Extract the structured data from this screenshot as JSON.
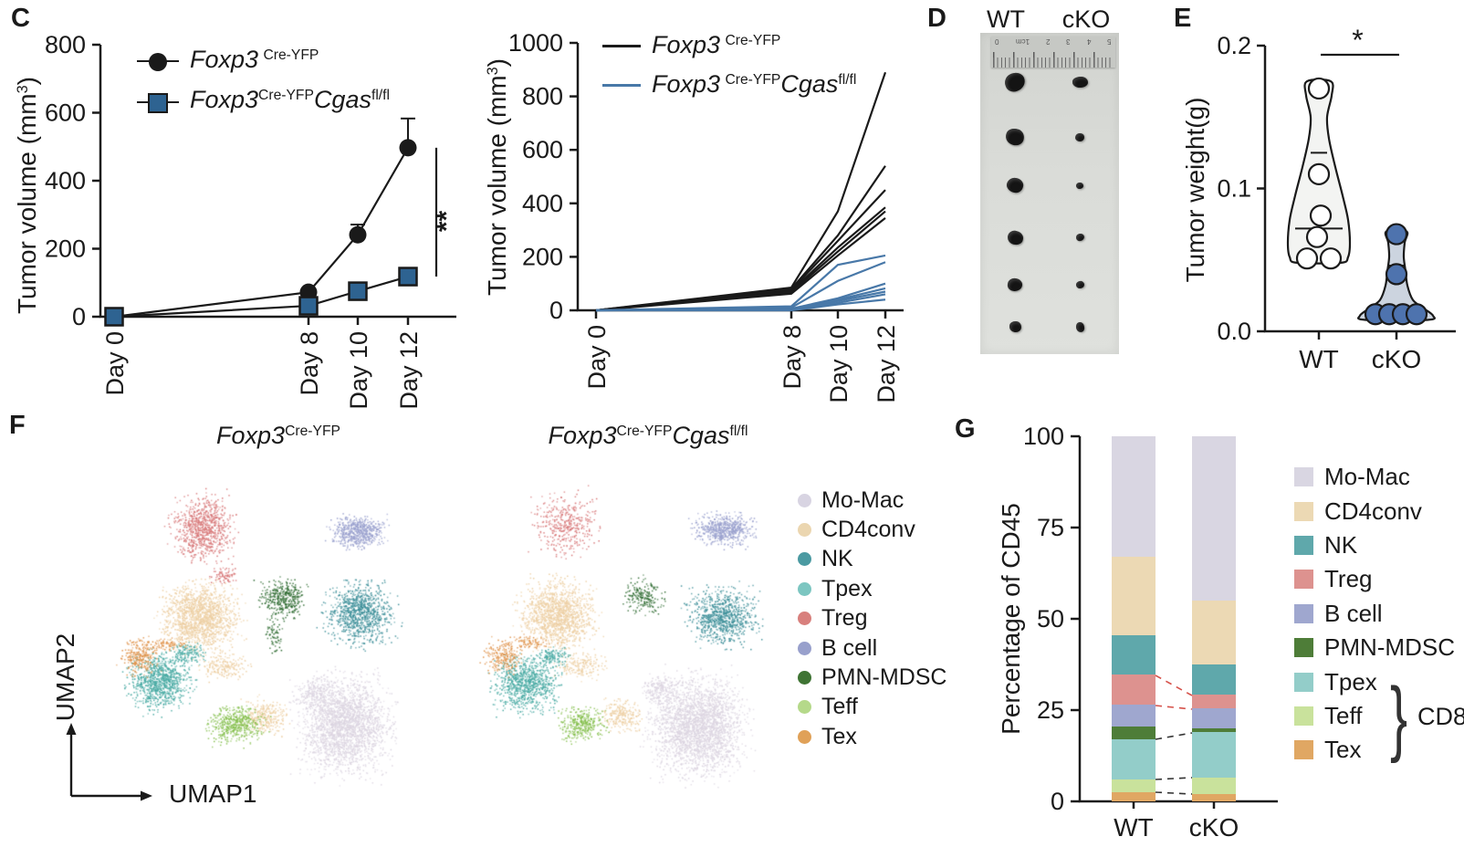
{
  "panels": {
    "c": {
      "label": "C"
    },
    "d": {
      "label": "D",
      "columns": [
        "WT",
        "cKO"
      ],
      "ruler_labels": [
        "0",
        "1cm",
        "2",
        "3",
        "4",
        "5"
      ],
      "tumors": {
        "wt": [
          [
            22,
            20
          ],
          [
            20,
            18
          ],
          [
            18,
            16
          ],
          [
            17,
            15
          ],
          [
            16,
            14
          ],
          [
            13,
            12
          ]
        ],
        "cko": [
          [
            17,
            12
          ],
          [
            10,
            9
          ],
          [
            8,
            7
          ],
          [
            9,
            8
          ],
          [
            9,
            8
          ],
          [
            9,
            11
          ]
        ]
      }
    },
    "e": {
      "label": "E"
    },
    "f": {
      "label": "F"
    },
    "g": {
      "label": "G"
    }
  },
  "chart_data": [
    {
      "id": "tumor-volume-mean",
      "type": "line",
      "ylabel": {
        "pre": "Tumor volume (mm",
        "sup": "3",
        "post": ")"
      },
      "ylim": [
        0,
        800
      ],
      "yticks": [
        0,
        200,
        400,
        600,
        800
      ],
      "categories": [
        "Day 0",
        "Day 8",
        "Day 10",
        "Day 12"
      ],
      "significance": "**",
      "series": [
        {
          "name": {
            "base1": "Foxp3",
            "sup1": "Cre-YFP"
          },
          "marker": "circle",
          "color": "#1a1a1a",
          "values": [
            0,
            72,
            241,
            497
          ],
          "err_up": [
            0,
            10,
            30,
            86
          ]
        },
        {
          "name": {
            "base1": "Foxp3",
            "sup1": "Cre-YFP",
            "base2": "Cgas",
            "sup2": "fl/fl"
          },
          "marker": "square",
          "color": "#2e6391",
          "values": [
            0,
            32,
            75,
            118
          ],
          "err_up": [
            0,
            6,
            10,
            18
          ]
        }
      ]
    },
    {
      "id": "tumor-volume-individual",
      "type": "line",
      "ylabel": {
        "pre": "Tumor volume (mm",
        "sup": "3",
        "post": ")"
      },
      "ylim": [
        0,
        1000
      ],
      "yticks": [
        0,
        200,
        400,
        600,
        800,
        1000
      ],
      "categories": [
        "Day 0",
        "Day 8",
        "Day 10",
        "Day 12"
      ],
      "groups": [
        {
          "name": {
            "base1": "Foxp3",
            "sup1": "Cre-YFP"
          },
          "color": "#1a1a1a",
          "lines": [
            [
              0,
              85,
              370,
              890
            ],
            [
              0,
              80,
              280,
              540
            ],
            [
              0,
              76,
              260,
              450
            ],
            [
              0,
              72,
              235,
              385
            ],
            [
              0,
              68,
              220,
              370
            ],
            [
              0,
              62,
              205,
              345
            ]
          ]
        },
        {
          "name": {
            "base1": "Foxp3",
            "sup1": "Cre-YFP",
            "base2": "Cgas",
            "sup2": "fl/fl"
          },
          "color": "#4878a8",
          "lines": [
            [
              0,
              15,
              170,
              205
            ],
            [
              0,
              10,
              110,
              180
            ],
            [
              0,
              6,
              45,
              100
            ],
            [
              0,
              5,
              40,
              82
            ],
            [
              0,
              3,
              35,
              70
            ],
            [
              0,
              2,
              28,
              60
            ],
            [
              0,
              0,
              22,
              40
            ]
          ]
        }
      ]
    },
    {
      "id": "tumor-weight",
      "type": "violin",
      "ylabel": "Tumor weight(g)",
      "ylim": [
        0,
        0.2
      ],
      "yticks": [
        "0.0",
        "0.1",
        "0.2"
      ],
      "categories": [
        "WT",
        "cKO"
      ],
      "significance": "*",
      "groups": [
        {
          "name": "WT",
          "fill": "#f3f4f2",
          "stroke": "#1a1a1a",
          "dot_fill": "#ffffff",
          "profile": [
            [
              0.175,
              13
            ],
            [
              0.165,
              14
            ],
            [
              0.15,
              9
            ],
            [
              0.135,
              11
            ],
            [
              0.115,
              18
            ],
            [
              0.095,
              26
            ],
            [
              0.078,
              32
            ],
            [
              0.062,
              34
            ],
            [
              0.052,
              32
            ],
            [
              0.048,
              24
            ]
          ],
          "points": [
            [
              0,
              0.17
            ],
            [
              0,
              0.11
            ],
            [
              2,
              0.081
            ],
            [
              -2,
              0.066
            ],
            [
              -13,
              0.051
            ],
            [
              13,
              0.051
            ]
          ],
          "median": {
            "v": 0.072,
            "hw": 26
          },
          "quartile": {
            "v": 0.125,
            "hw": 9
          }
        },
        {
          "name": "cKO",
          "fill": "#ccd4df",
          "stroke": "#1a1a1a",
          "dot_fill": "#4e73ae",
          "profile": [
            [
              0.07,
              11
            ],
            [
              0.062,
              9
            ],
            [
              0.052,
              8
            ],
            [
              0.042,
              10
            ],
            [
              0.032,
              12
            ],
            [
              0.022,
              18
            ],
            [
              0.016,
              30
            ],
            [
              0.011,
              40
            ],
            [
              0.008,
              34
            ]
          ],
          "points": [
            [
              0,
              0.068
            ],
            [
              0,
              0.04
            ],
            [
              -23,
              0.012
            ],
            [
              -8,
              0.012
            ],
            [
              7,
              0.012
            ],
            [
              22,
              0.012
            ]
          ],
          "median": {
            "v": 0.0125,
            "hw": 26
          },
          "quartile": {
            "v": 0.046,
            "hw": 9
          }
        }
      ]
    },
    {
      "id": "umap",
      "type": "scatter",
      "xlabel": "UMAP1",
      "ylabel": "UMAP2",
      "titles": [
        {
          "base1": "Foxp3",
          "sup1": "Cre-YFP"
        },
        {
          "base1": "Foxp3",
          "sup1": "Cre-YFP",
          "base2": "Cgas",
          "sup2": "fl/fl"
        }
      ],
      "legend": [
        {
          "label": "Mo-Mac",
          "color": "#d8d4e2"
        },
        {
          "label": "CD4conv",
          "color": "#ebd6b0"
        },
        {
          "label": "NK",
          "color": "#4b9aa2"
        },
        {
          "label": "Tpex",
          "color": "#7cc6c1"
        },
        {
          "label": "Treg",
          "color": "#d8807d"
        },
        {
          "label": "B cell",
          "color": "#98a0cc"
        },
        {
          "label": "PMN-MDSC",
          "color": "#3f7434"
        },
        {
          "label": "Teff",
          "color": "#b5d98a"
        },
        {
          "label": "Tex",
          "color": "#e0a158"
        }
      ],
      "plots": [
        {
          "clusters": [
            {
              "name": "Mo-Mac",
              "color": "#dcd5e1",
              "blobs": [
                [
                  293,
                  304,
                  66,
                  70,
                  2400
                ],
                [
                  260,
                  270,
                  30,
                  25,
                  250
                ]
              ]
            },
            {
              "name": "CD4conv",
              "color": "#edcfa3",
              "blobs": [
                [
                  133,
                  185,
                  56,
                  48,
                  1500
                ],
                [
                  205,
                  295,
                  32,
                  26,
                  280
                ],
                [
                  160,
                  240,
                  40,
                  20,
                  200
                ]
              ]
            },
            {
              "name": "NK",
              "color": "#3d8f99",
              "blobs": [
                [
                  309,
                  181,
                  50,
                  45,
                  950
                ]
              ]
            },
            {
              "name": "Tpex",
              "color": "#48aaa3",
              "blobs": [
                [
                  88,
                  256,
                  47,
                  42,
                  950
                ],
                [
                  120,
                  225,
                  25,
                  15,
                  150
                ]
              ]
            },
            {
              "name": "Treg",
              "color": "#d8797a",
              "blobs": [
                [
                  137,
                  88,
                  45,
                  50,
                  850
                ],
                [
                  160,
                  140,
                  20,
                  15,
                  80
                ]
              ]
            },
            {
              "name": "B cell",
              "color": "#9aa1ce",
              "blobs": [
                [
                  307,
                  92,
                  40,
                  24,
                  600
                ]
              ]
            },
            {
              "name": "PMN-MDSC",
              "color": "#2e6b31",
              "blobs": [
                [
                  224,
                  165,
                  32,
                  28,
                  380
                ],
                [
                  215,
                  205,
                  15,
                  25,
                  70
                ]
              ]
            },
            {
              "name": "Teff",
              "color": "#85bf4d",
              "blobs": [
                [
                  172,
                  303,
                  42,
                  28,
                  480
                ]
              ]
            },
            {
              "name": "Tex",
              "color": "#e0944d",
              "blobs": [
                [
                  67,
                  230,
                  28,
                  26,
                  260
                ],
                [
                  95,
                  215,
                  35,
                  10,
                  90
                ]
              ]
            }
          ]
        },
        {
          "clusters": [
            {
              "name": "Mo-Mac",
              "color": "#dcd5e1",
              "blobs": [
                [
                  268,
                  305,
                  68,
                  72,
                  2600
                ],
                [
                  230,
                  265,
                  28,
                  22,
                  220
                ]
              ]
            },
            {
              "name": "CD4conv",
              "color": "#edcfa3",
              "blobs": [
                [
                  115,
                  183,
                  55,
                  50,
                  1350
                ],
                [
                  185,
                  293,
                  30,
                  24,
                  240
                ],
                [
                  140,
                  240,
                  40,
                  20,
                  180
                ]
              ]
            },
            {
              "name": "NK",
              "color": "#3d8f99",
              "blobs": [
                [
                  296,
                  185,
                  50,
                  42,
                  850
                ]
              ]
            },
            {
              "name": "Tpex",
              "color": "#48aaa3",
              "blobs": [
                [
                  80,
                  258,
                  46,
                  42,
                  900
                ],
                [
                  110,
                  228,
                  24,
                  14,
                  130
                ]
              ]
            },
            {
              "name": "Treg",
              "color": "#d8797a",
              "blobs": [
                [
                  123,
                  83,
                  46,
                  45,
                  420
                ]
              ]
            },
            {
              "name": "B cell",
              "color": "#9aa1ce",
              "blobs": [
                [
                  298,
                  90,
                  42,
                  24,
                  600
                ]
              ]
            },
            {
              "name": "PMN-MDSC",
              "color": "#2e6b31",
              "blobs": [
                [
                  208,
                  163,
                  34,
                  26,
                  200
                ]
              ]
            },
            {
              "name": "Teff",
              "color": "#85bf4d",
              "blobs": [
                [
                  142,
                  303,
                  32,
                  24,
                  340
                ]
              ]
            },
            {
              "name": "Tex",
              "color": "#e0944d",
              "blobs": [
                [
                  55,
                  228,
                  28,
                  26,
                  230
                ],
                [
                  85,
                  213,
                  32,
                  10,
                  80
                ]
              ]
            }
          ]
        }
      ]
    },
    {
      "id": "cd45-composition",
      "type": "stacked_bar",
      "ylabel": "Percentage of CD45",
      "ylim": [
        0,
        100
      ],
      "yticks": [
        0,
        25,
        50,
        75,
        100
      ],
      "categories": [
        "WT",
        "cKO"
      ],
      "series": [
        {
          "name": "Tex",
          "color": "#e0a763",
          "values": [
            2.5,
            2
          ]
        },
        {
          "name": "Teff",
          "color": "#c9e29c",
          "values": [
            3.5,
            4.5
          ]
        },
        {
          "name": "Tpex",
          "color": "#93cdc9",
          "values": [
            11,
            12.5
          ]
        },
        {
          "name": "PMN-MDSC",
          "color": "#4e7d38",
          "values": [
            3.5,
            1
          ]
        },
        {
          "name": "B cell",
          "color": "#9fa7cf",
          "values": [
            6,
            5.5
          ]
        },
        {
          "name": "Treg",
          "color": "#dd928f",
          "values": [
            8.25,
            3.75
          ]
        },
        {
          "name": "NK",
          "color": "#5fa8ab",
          "values": [
            10.75,
            8.25
          ]
        },
        {
          "name": "CD4conv",
          "color": "#ecd9b4",
          "values": [
            21.5,
            17.5
          ]
        },
        {
          "name": "Mo-Mac",
          "color": "#d9d6e2",
          "values": [
            33,
            45
          ]
        }
      ],
      "connectors": [
        {
          "color": "#d6524b",
          "from": 34.5,
          "to": 29
        },
        {
          "color": "#d6524b",
          "from": 26.25,
          "to": 25.25
        },
        {
          "color": "#333333",
          "from": 17,
          "to": 18.75
        },
        {
          "color": "#333333",
          "from": 6,
          "to": 6.5
        },
        {
          "color": "#333333",
          "from": 2.5,
          "to": 2
        }
      ],
      "legend": [
        {
          "label": "Mo-Mac",
          "color": "#d9d6e2"
        },
        {
          "label": "CD4conv",
          "color": "#ecd9b4"
        },
        {
          "label": "NK",
          "color": "#5fa8ab"
        },
        {
          "label": "Treg",
          "color": "#dd928f"
        },
        {
          "label": "B cell",
          "color": "#9fa7cf"
        },
        {
          "label": "PMN-MDSC",
          "color": "#4e7d38"
        },
        {
          "label": "Tpex",
          "color": "#93cdc9"
        },
        {
          "label": "Teff",
          "color": "#c9e29c"
        },
        {
          "label": "Tex",
          "color": "#e0a763"
        }
      ],
      "cd8_label": "CD8"
    }
  ]
}
